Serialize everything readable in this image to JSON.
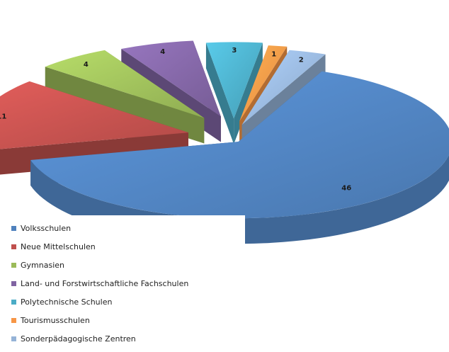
{
  "chart_data": {
    "type": "pie",
    "style": "3d-exploded",
    "legend_position": "bottom-left",
    "slices": [
      {
        "label": "Volksschulen",
        "value": 46,
        "color": "#4f81bd"
      },
      {
        "label": "Neue Mittelschulen",
        "value": 11,
        "color": "#c0504d"
      },
      {
        "label": "Gymnasien",
        "value": 4,
        "color": "#9bbb59"
      },
      {
        "label": "Land- und Forstwirtschaftliche Fachschulen",
        "value": 4,
        "color": "#8064a2"
      },
      {
        "label": "Polytechnische Schulen",
        "value": 3,
        "color": "#4bacc6"
      },
      {
        "label": "Tourismusschulen",
        "value": 1,
        "color": "#f79646"
      },
      {
        "label": "Sonderpädagogische Zentren",
        "value": 2,
        "color": "#95b3d7"
      }
    ]
  }
}
